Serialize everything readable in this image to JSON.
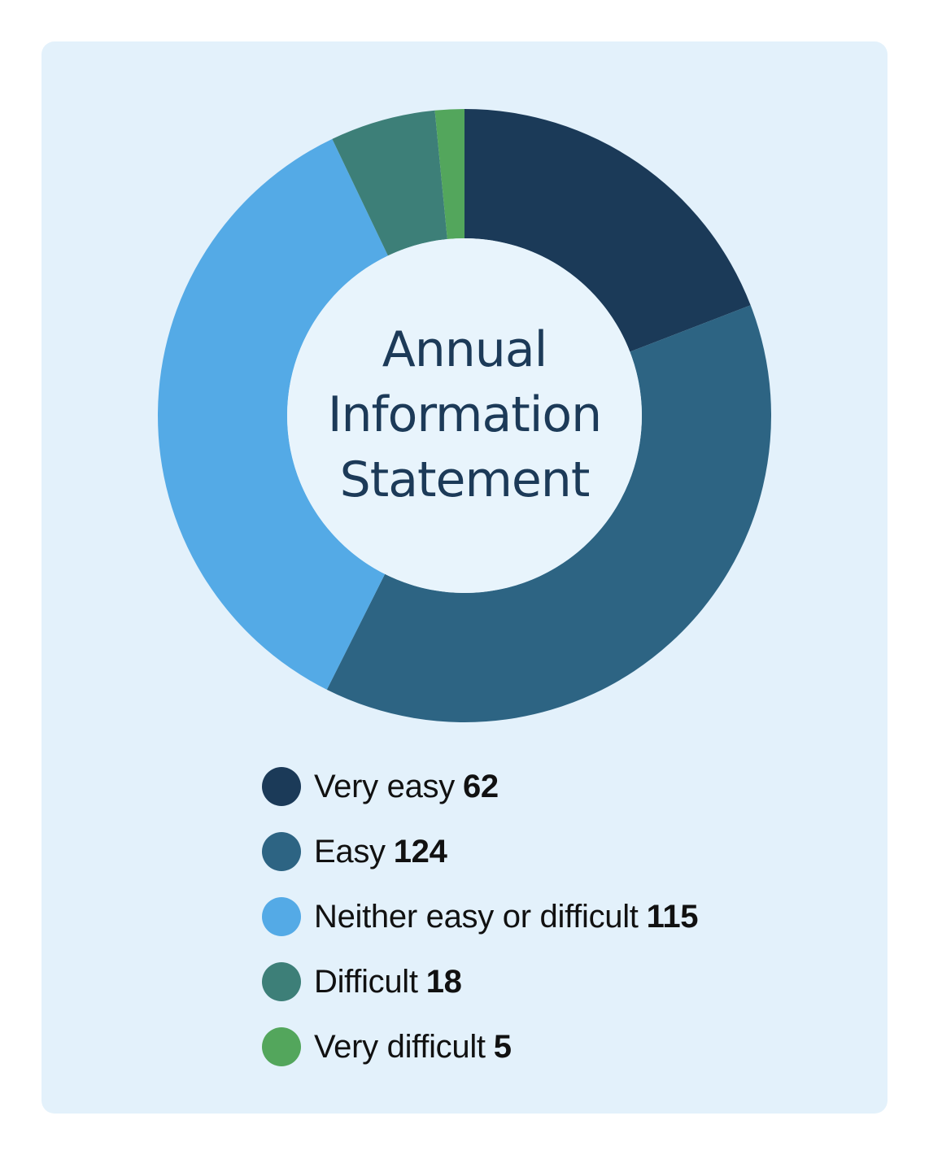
{
  "chart_data": {
    "type": "donut",
    "title": "Annual Information Statement",
    "title_lines": [
      "Annual",
      "Information",
      "Statement"
    ],
    "categories": [
      "Very easy",
      "Easy",
      "Neither easy or difficult",
      "Difficult",
      "Very difficult"
    ],
    "values": [
      62,
      124,
      115,
      18,
      5
    ],
    "colors": [
      "#1b3a58",
      "#2d6483",
      "#54aae6",
      "#3d7f78",
      "#53a65c"
    ],
    "legend_position": "bottom"
  }
}
